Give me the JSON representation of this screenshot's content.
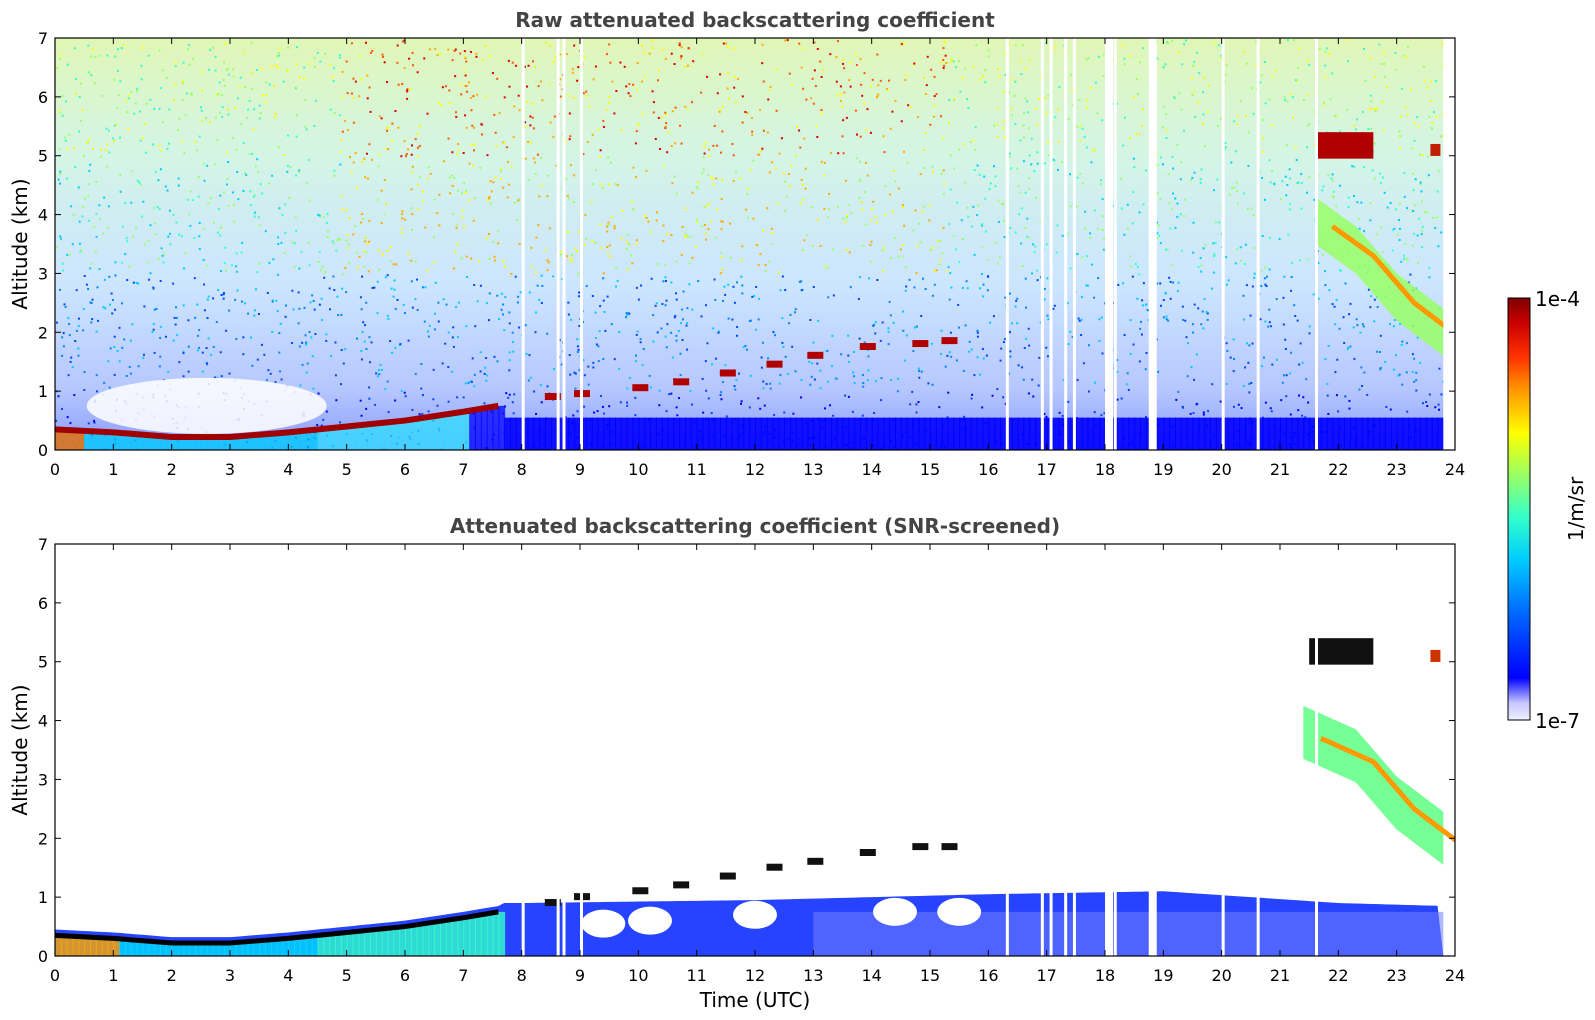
{
  "chart_data": [
    {
      "type": "heatmap",
      "title": "Raw attenuated backscattering coefficient",
      "xlabel": "",
      "ylabel": "Altitude (km)",
      "xlim": [
        0,
        24
      ],
      "ylim": [
        0,
        7
      ],
      "xticks": [
        "0",
        "1",
        "2",
        "3",
        "4",
        "5",
        "6",
        "7",
        "8",
        "9",
        "10",
        "11",
        "12",
        "13",
        "14",
        "15",
        "16",
        "17",
        "18",
        "19",
        "20",
        "21",
        "22",
        "23",
        "24"
      ],
      "yticks": [
        "0",
        "1",
        "2",
        "3",
        "4",
        "5",
        "6",
        "7"
      ],
      "data_extent_hours": [
        0,
        23.8
      ],
      "features": {
        "boundary_layer_top_km": [
          [
            0,
            0.35
          ],
          [
            1,
            0.3
          ],
          [
            2,
            0.22
          ],
          [
            3,
            0.22
          ],
          [
            4,
            0.3
          ],
          [
            5,
            0.4
          ],
          [
            6,
            0.5
          ],
          [
            7,
            0.65
          ],
          [
            7.6,
            0.75
          ]
        ],
        "cloud_base_km": [
          [
            8.5,
            0.9
          ],
          [
            9,
            0.95
          ],
          [
            10,
            1.05
          ],
          [
            10.7,
            1.15
          ],
          [
            11.5,
            1.3
          ],
          [
            12.3,
            1.45
          ],
          [
            13,
            1.6
          ],
          [
            13.9,
            1.75
          ],
          [
            14.8,
            1.8
          ],
          [
            15.3,
            1.85
          ]
        ],
        "elevated_layer_km": [
          [
            21.6,
            5.4
          ],
          [
            22.2,
            5.2
          ],
          [
            22.6,
            5.1
          ],
          [
            23.75,
            5.05
          ]
        ],
        "fallstreak_km": [
          [
            21.6,
            3.9
          ],
          [
            22.3,
            3.4
          ],
          [
            23,
            2.6
          ],
          [
            23.8,
            2.0
          ]
        ],
        "gaps_hours": [
          8.0,
          8.6,
          8.7,
          9.0,
          16.3,
          16.9,
          17.05,
          17.3,
          17.45,
          18.0,
          18.15,
          18.75,
          20.0,
          20.6,
          21.6
        ],
        "noise_bands_hours": [
          [
            4.9,
            15.3
          ]
        ]
      }
    },
    {
      "type": "heatmap",
      "title": "Attenuated backscattering coefficient (SNR-screened)",
      "xlabel": "Time (UTC)",
      "ylabel": "Altitude (km)",
      "xlim": [
        0,
        24
      ],
      "ylim": [
        0,
        7
      ],
      "xticks": [
        "0",
        "1",
        "2",
        "3",
        "4",
        "5",
        "6",
        "7",
        "8",
        "9",
        "10",
        "11",
        "12",
        "13",
        "14",
        "15",
        "16",
        "17",
        "18",
        "19",
        "20",
        "21",
        "22",
        "23",
        "24"
      ],
      "yticks": [
        "0",
        "1",
        "2",
        "3",
        "4",
        "5",
        "6",
        "7"
      ],
      "data_extent_hours": [
        0,
        23.8
      ],
      "features": {
        "boundary_layer_top_km": [
          [
            0,
            0.35
          ],
          [
            1,
            0.3
          ],
          [
            2,
            0.22
          ],
          [
            3,
            0.22
          ],
          [
            4,
            0.3
          ],
          [
            5,
            0.4
          ],
          [
            6,
            0.5
          ],
          [
            7,
            0.65
          ],
          [
            7.6,
            0.75
          ]
        ],
        "cloud_base_km": [
          [
            8.5,
            0.9
          ],
          [
            9,
            1.0
          ],
          [
            10,
            1.1
          ],
          [
            10.7,
            1.2
          ],
          [
            11.5,
            1.35
          ],
          [
            12.3,
            1.5
          ],
          [
            13,
            1.6
          ],
          [
            13.9,
            1.75
          ],
          [
            14.8,
            1.85
          ],
          [
            15.3,
            1.85
          ]
        ],
        "elevated_layer_km": [
          [
            21.5,
            5.4
          ],
          [
            22.2,
            5.2
          ],
          [
            22.6,
            5.1
          ],
          [
            23.75,
            5.05
          ]
        ],
        "fallstreak_km": [
          [
            21.4,
            3.8
          ],
          [
            22.3,
            3.4
          ],
          [
            23,
            2.6
          ],
          [
            23.8,
            2.0
          ]
        ],
        "lowlevel_layer_top_km": [
          [
            8,
            0.9
          ],
          [
            12,
            0.95
          ],
          [
            16,
            1.05
          ],
          [
            19,
            1.1
          ],
          [
            22,
            0.9
          ],
          [
            23.8,
            0.85
          ]
        ]
      }
    }
  ],
  "colorbar": {
    "label": "1/m/sr",
    "max_label": "1e-4",
    "min_label": "1e-7",
    "scale": "log",
    "colormap": "jet",
    "colors": [
      "#efefff",
      "#c7c7ff",
      "#0000ff",
      "#0066ff",
      "#00ccff",
      "#33ffcc",
      "#99ff66",
      "#ffff00",
      "#ff9900",
      "#ff3300",
      "#cc0000",
      "#800000"
    ]
  }
}
